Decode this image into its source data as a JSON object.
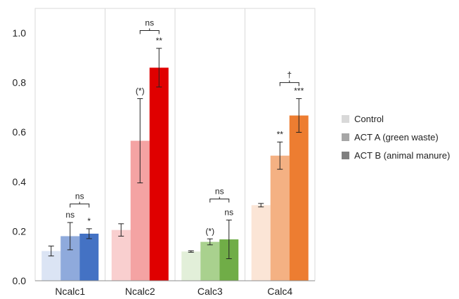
{
  "chart_data": {
    "type": "bar",
    "categories": [
      "Ncalc1",
      "Ncalc2",
      "Calc3",
      "Calc4"
    ],
    "series": [
      {
        "name": "Control",
        "values": [
          0.12,
          0.205,
          0.118,
          0.305
        ],
        "errors": [
          0.02,
          0.025,
          0.003,
          0.007
        ]
      },
      {
        "name": "ACT A (green waste)",
        "values": [
          0.18,
          0.565,
          0.157,
          0.505
        ],
        "errors": [
          0.055,
          0.17,
          0.012,
          0.055
        ]
      },
      {
        "name": "ACT B (animal manure)",
        "values": [
          0.19,
          0.86,
          0.167,
          0.667
        ],
        "errors": [
          0.02,
          0.078,
          0.078,
          0.068
        ]
      }
    ],
    "bar_colors": [
      [
        "#dbe4f4",
        "#8faadc",
        "#4472c4"
      ],
      [
        "#f9cfcf",
        "#f4a3a3",
        "#e00000"
      ],
      [
        "#e2efd9",
        "#a9d18e",
        "#70ad47"
      ],
      [
        "#fbe5d6",
        "#f4b183",
        "#ed7d31"
      ]
    ],
    "legend_colors": [
      "#d9d9d9",
      "#a6a6a6",
      "#7f7f7f"
    ],
    "yticks": [
      "0.0",
      "0.2",
      "0.4",
      "0.6",
      "0.8",
      "1.0"
    ],
    "ylim": [
      0,
      1.1
    ],
    "significance": [
      {
        "category": 0,
        "bar": 1,
        "label": "ns"
      },
      {
        "category": 0,
        "bar": 2,
        "label": "*"
      },
      {
        "category": 1,
        "bar": 1,
        "label": "(*)"
      },
      {
        "category": 1,
        "bar": 2,
        "label": "**"
      },
      {
        "category": 2,
        "bar": 1,
        "label": "(*)"
      },
      {
        "category": 2,
        "bar": 2,
        "label": "ns"
      },
      {
        "category": 3,
        "bar": 1,
        "label": "**"
      },
      {
        "category": 3,
        "bar": 2,
        "label": "***"
      }
    ],
    "brackets": [
      {
        "category": 0,
        "label": "ns",
        "y": 0.31
      },
      {
        "category": 1,
        "label": "ns",
        "y": 1.01
      },
      {
        "category": 2,
        "label": "ns",
        "y": 0.33
      },
      {
        "category": 3,
        "label": "†",
        "y": 0.8
      }
    ]
  }
}
